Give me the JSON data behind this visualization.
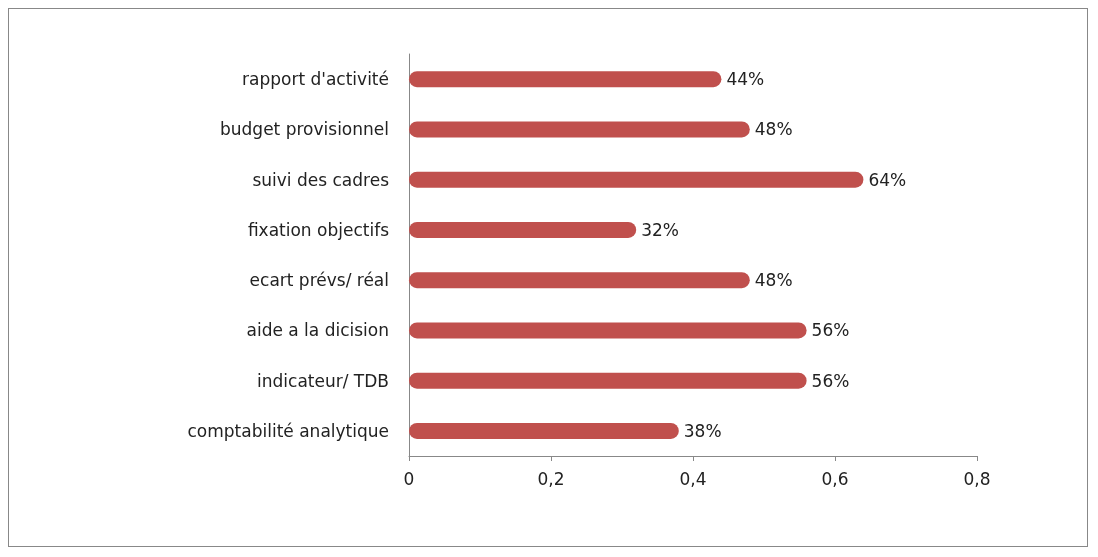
{
  "chart_data": {
    "type": "bar",
    "orientation": "horizontal",
    "categories": [
      "rapport d'activité",
      "budget provisionnel",
      "suivi des cadres",
      "fixation objectifs",
      "ecart prévs/ réal",
      "aide a la dicision",
      "indicateur/ TDB",
      "comptabilité analytique"
    ],
    "values": [
      0.44,
      0.48,
      0.64,
      0.32,
      0.48,
      0.56,
      0.56,
      0.38
    ],
    "value_labels": [
      "44%",
      "48%",
      "64%",
      "32%",
      "48%",
      "56%",
      "56%",
      "38%"
    ],
    "color": "#c0504d",
    "xlim": [
      0,
      0.8
    ],
    "xticks": [
      0,
      {
        "value": 0.2,
        "label": "0,2"
      },
      {
        "value": 0.4,
        "label": "0,4"
      },
      {
        "value": 0.6,
        "label": "0,6"
      },
      {
        "value": 0.8,
        "label": "0,8"
      }
    ]
  }
}
